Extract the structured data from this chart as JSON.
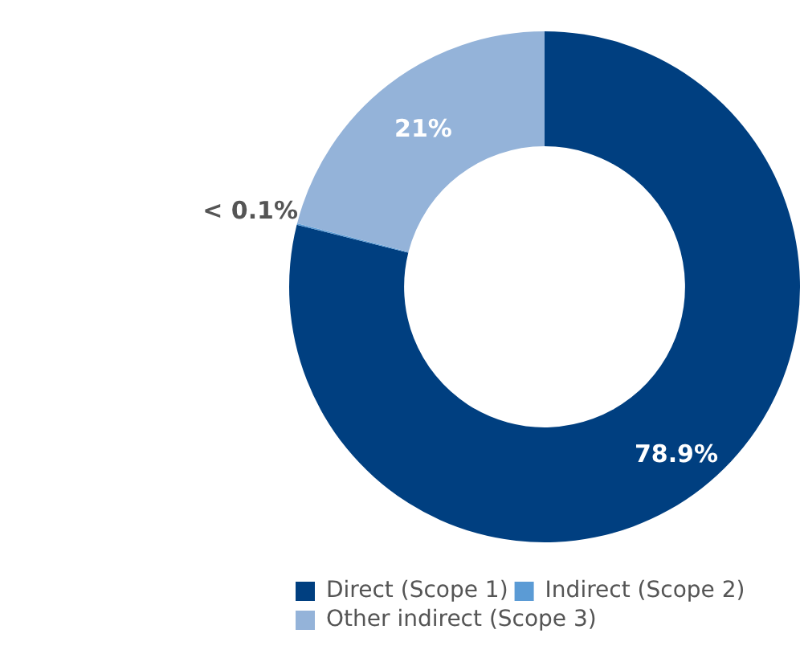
{
  "chart_data": {
    "type": "donut",
    "categories": [
      "Direct (Scope 1)",
      "Indirect (Scope 2)",
      "Other indirect (Scope 3)"
    ],
    "values": [
      78.9,
      0.1,
      21
    ],
    "colors": [
      "#003f80",
      "#5b9bd5",
      "#94b3d9"
    ],
    "value_labels": [
      "78.9%",
      "< 0.1%",
      "21%"
    ],
    "legend": "bottom left"
  }
}
